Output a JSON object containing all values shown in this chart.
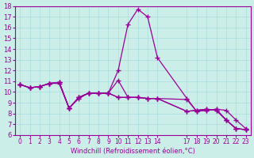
{
  "xlabel": "Windchill (Refroidissement éolien,°C)",
  "bg_color": "#cceee8",
  "line_color": "#990099",
  "grid_color": "#aadddd",
  "x_hours": [
    0,
    1,
    2,
    3,
    4,
    5,
    6,
    7,
    8,
    9,
    10,
    11,
    12,
    13,
    14,
    17,
    18,
    19,
    20,
    21,
    22,
    23
  ],
  "line1": [
    10.7,
    10.4,
    10.5,
    10.8,
    10.9,
    8.5,
    9.5,
    9.9,
    9.9,
    9.9,
    9.5,
    9.5,
    9.5,
    9.4,
    9.4,
    8.2,
    8.3,
    8.4,
    8.3,
    7.4,
    6.6,
    6.5
  ],
  "line2": [
    10.7,
    10.4,
    10.5,
    10.8,
    10.9,
    8.5,
    9.5,
    9.9,
    9.9,
    9.9,
    12.0,
    16.3,
    17.7,
    17.0,
    13.2,
    9.4,
    8.2,
    8.3,
    8.4,
    8.3,
    7.4,
    6.6
  ],
  "line3": [
    10.7,
    10.4,
    10.5,
    10.8,
    10.8,
    8.5,
    9.4,
    9.9,
    9.9,
    9.9,
    11.1,
    9.5,
    9.5,
    9.4,
    9.4,
    8.2,
    8.3,
    8.4,
    8.3,
    7.4,
    6.6,
    6.5
  ],
  "line4": [
    10.7,
    10.4,
    10.5,
    10.8,
    10.9,
    8.5,
    9.5,
    9.9,
    9.9,
    9.9,
    9.5,
    9.5,
    9.5,
    9.4,
    9.4,
    9.3,
    8.2,
    8.3,
    8.4,
    7.4,
    6.6,
    6.5
  ],
  "ylim": [
    6,
    18
  ],
  "yticks": [
    6,
    7,
    8,
    9,
    10,
    11,
    12,
    13,
    14,
    15,
    16,
    17,
    18
  ],
  "xtick_positions": [
    0,
    1,
    2,
    3,
    4,
    5,
    6,
    7,
    8,
    9,
    10,
    11,
    12,
    13,
    14,
    17,
    18,
    19,
    20,
    21,
    22,
    23
  ],
  "xtick_labels": [
    "0",
    "1",
    "2",
    "3",
    "4",
    "5",
    "6",
    "7",
    "8",
    "9",
    "10",
    "11",
    "12",
    "13",
    "14",
    "17",
    "18",
    "19",
    "20",
    "21",
    "22",
    "23"
  ]
}
